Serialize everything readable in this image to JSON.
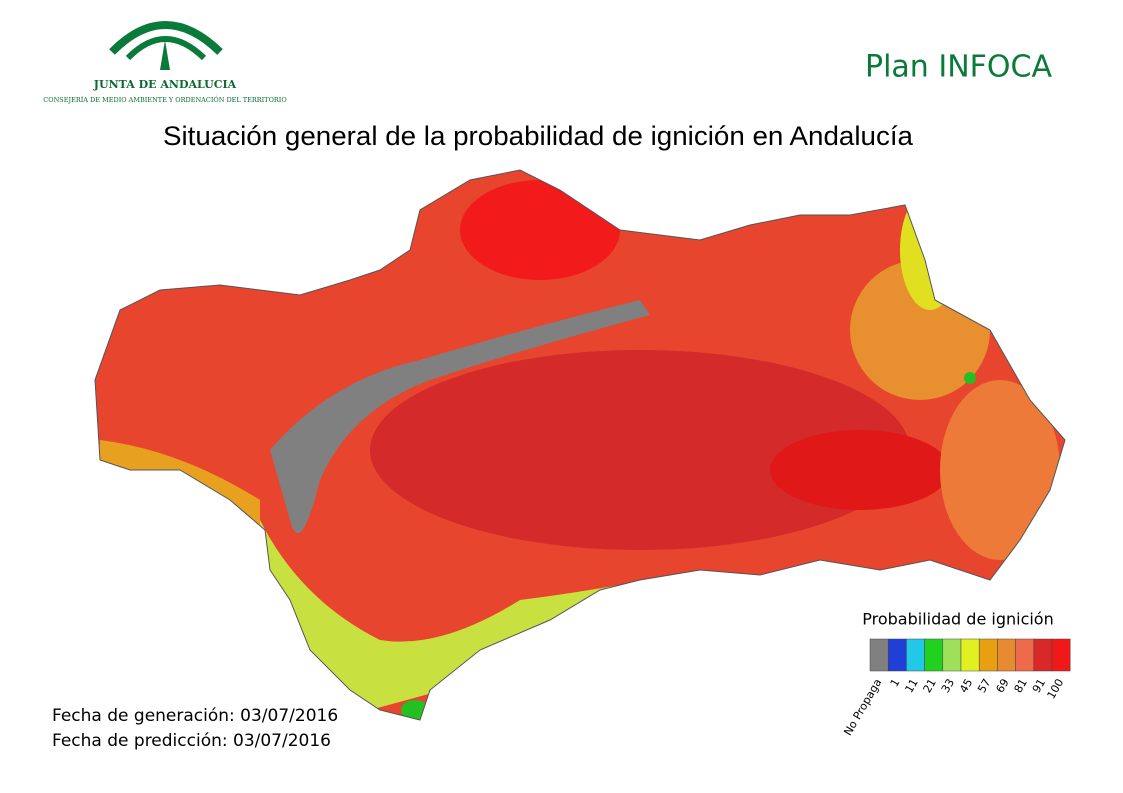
{
  "header": {
    "org_name": "JUNTA DE ANDALUCIA",
    "org_department": "CONSEJERÍA DE MEDIO AMBIENTE Y ORDENACIÓN DEL TERRITORIO",
    "plan": "Plan INFOCA"
  },
  "title": "Situación general de la probabilidad de ignición en Andalucía",
  "legend": {
    "title": "Probabilidad de ignición",
    "items": [
      {
        "label": "No Propaga",
        "color": "#808080"
      },
      {
        "label": "1",
        "color": "#1f3fd6"
      },
      {
        "label": "11",
        "color": "#22c8e8"
      },
      {
        "label": "21",
        "color": "#22d020"
      },
      {
        "label": "33",
        "color": "#9ee05a"
      },
      {
        "label": "45",
        "color": "#e0f020"
      },
      {
        "label": "57",
        "color": "#e8a010"
      },
      {
        "label": "69",
        "color": "#e88a30"
      },
      {
        "label": "81",
        "color": "#ee6a48"
      },
      {
        "label": "91",
        "color": "#d82828"
      },
      {
        "label": "100",
        "color": "#f01818"
      }
    ]
  },
  "footer": {
    "generation_date": "Fecha de generación: 03/07/2016",
    "prediction_date": "Fecha de predicción:  03/07/2016"
  }
}
